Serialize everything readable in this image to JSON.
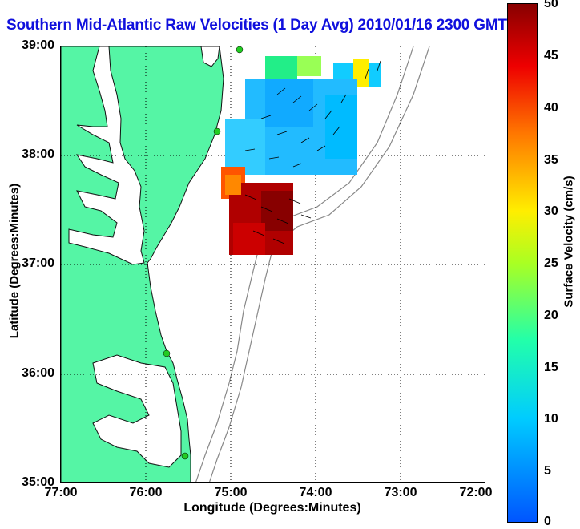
{
  "title": "Southern Mid-Atlantic Raw Velocities (1 Day Avg) 2010/01/16 2300 GMT",
  "map": {
    "x_label": "Longitude (Degrees:Minutes)",
    "y_label": "Latitude (Degrees:Minutes)",
    "lon_ticks": [
      "77:00",
      "76:00",
      "75:00",
      "74:00",
      "73:00",
      "72:00"
    ],
    "lat_ticks": [
      "39:00",
      "38:00",
      "37:00",
      "36:00",
      "35:00"
    ],
    "lon_range": [
      -77.0,
      -72.0
    ],
    "lat_range": [
      35.0,
      39.0
    ],
    "grid": "dotted",
    "colors": {
      "land": "#55f5a5",
      "land_outline": "#111111",
      "bathymetry": "#888888",
      "arrow": "#000000",
      "station": "#22cc22"
    }
  },
  "stations": [
    {
      "lon": -75.1,
      "lat": 38.98
    },
    {
      "lon": -75.15,
      "lat": 38.22
    },
    {
      "lon": -75.55,
      "lat": 36.18
    },
    {
      "lon": -75.45,
      "lat": 35.25
    }
  ],
  "colorbar": {
    "label": "Surface Velocity (cm/s)",
    "ticks": [
      "50",
      "45",
      "40",
      "35",
      "30",
      "25",
      "20",
      "15",
      "10",
      "5",
      "0"
    ],
    "range": [
      0,
      50
    ],
    "colormap": "jet"
  }
}
